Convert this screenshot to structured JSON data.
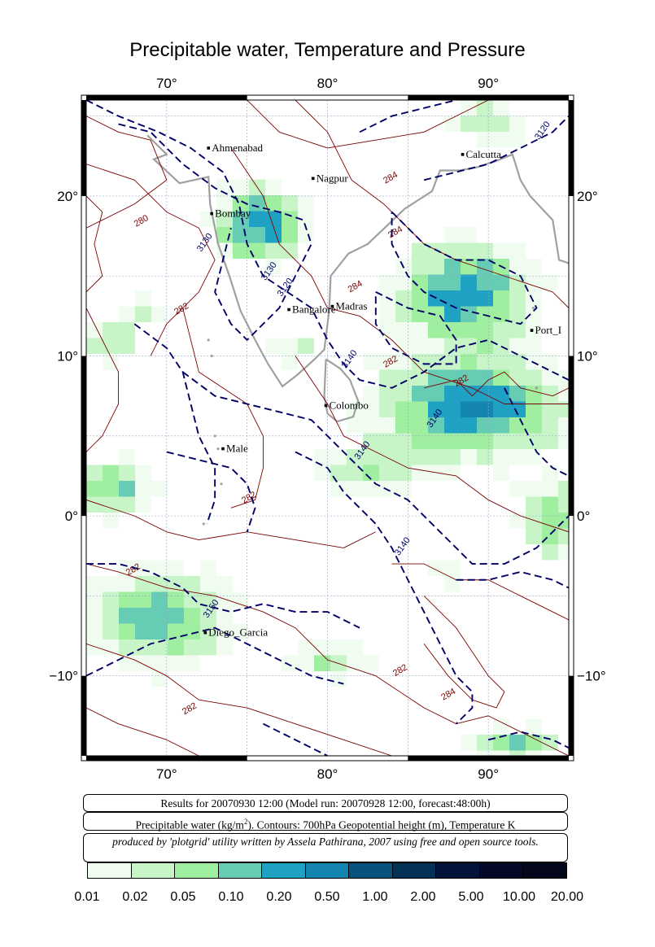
{
  "title": "Precipitable water, Temperature and Pressure",
  "map": {
    "lon_range": [
      65,
      95
    ],
    "lat_range": [
      -15,
      26
    ],
    "top_lon_labels": [
      "70°",
      "80°",
      "90°"
    ],
    "bottom_lon_labels": [
      "70°",
      "80°",
      "90°"
    ],
    "left_lat_labels": [
      "20°",
      "10°",
      "0°",
      "−10°"
    ],
    "right_lat_labels": [
      "20°",
      "10°",
      "0°",
      "−10°"
    ],
    "cities": [
      {
        "name": "Ahmenabad",
        "lon": 72.6,
        "lat": 23.0
      },
      {
        "name": "Nagpur",
        "lon": 79.1,
        "lat": 21.1
      },
      {
        "name": "Calcutta",
        "lon": 88.4,
        "lat": 22.6
      },
      {
        "name": "Bombay",
        "lon": 72.8,
        "lat": 18.9
      },
      {
        "name": "Bangalore",
        "lon": 77.6,
        "lat": 12.9
      },
      {
        "name": "Madras",
        "lon": 80.3,
        "lat": 13.1
      },
      {
        "name": "Port_I",
        "lon": 92.7,
        "lat": 11.6
      },
      {
        "name": "Colombo",
        "lon": 79.9,
        "lat": 6.9
      },
      {
        "name": "Male",
        "lon": 73.5,
        "lat": 4.2
      },
      {
        "name": "Diego_Garcia",
        "lon": 72.4,
        "lat": -7.3
      }
    ],
    "geopotential_labels": [
      "3120",
      "3130",
      "3120",
      "3130",
      "3140",
      "3140",
      "3140",
      "3140",
      "3150"
    ],
    "temperature_labels": [
      "280",
      "284",
      "284",
      "284",
      "282",
      "282",
      "282",
      "282",
      "282",
      "282",
      "282",
      "284"
    ],
    "colors": {
      "geopotential": "#000066",
      "temperature": "#7a0000",
      "coast": "#a0a0a0",
      "grid": "#9aa6c8"
    }
  },
  "info": {
    "results": "Results for 20070930 12:00 (Model run: 20070928 12:00, forecast:48:00h)",
    "variables_pre": "Precipitable water (kg/m",
    "variables_sup": "2",
    "variables_post": ").  Contours: 700hPa Geopotential height (m), Temperature K",
    "credit": "produced by 'plotgrid' utility written by Assela Pathirana, 2007 using free and open source tools."
  },
  "colorbar": {
    "colors": [
      "#f0fcf0",
      "#c8f5c8",
      "#a0eea0",
      "#66ccb3",
      "#1fa1c4",
      "#1485b0",
      "#08527f",
      "#033256",
      "#02123a",
      "#03082a",
      "#04061c"
    ],
    "labels": [
      "0.01",
      "0.02",
      "0.05",
      "0.10",
      "0.20",
      "0.50",
      "1.00",
      "2.00",
      "5.00",
      "10.00",
      "20.00"
    ]
  }
}
